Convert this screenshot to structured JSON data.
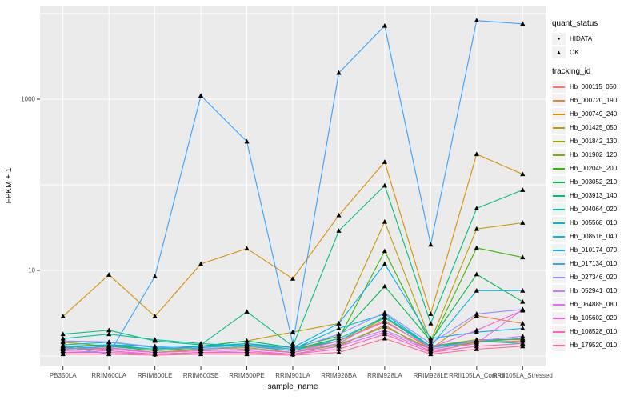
{
  "chart_data": {
    "type": "line",
    "title": "",
    "xlabel": "sample_name",
    "ylabel": "FPKM + 1",
    "y_scale": "log10",
    "ylim": [
      1,
      10000
    ],
    "y_tick_values": [
      10,
      1000
    ],
    "y_tick_labels": [
      "10",
      "1000"
    ],
    "grid": "on",
    "legend_position": "right",
    "categories": [
      "PB350LA",
      "RRIM600LA",
      "RRIM600LE",
      "RRIM600SE",
      "RRIM600PE",
      "RRIM901LA",
      "RRIM928BA",
      "RRIM928LA",
      "RRIM928LE",
      "RRII105LA_Control",
      "RRII105LA_Stressed"
    ],
    "series": [
      {
        "name": "Hb_000115_050",
        "color": "#F8766D",
        "values": [
          1.25,
          1.15,
          1.05,
          1.1,
          1.1,
          1.05,
          1.3,
          2.3,
          1.1,
          1.45,
          1.5
        ],
        "hidata": []
      },
      {
        "name": "Hb_000720_190",
        "color": "#EA8331",
        "values": [
          1.3,
          1.2,
          1.1,
          1.2,
          1.3,
          1.15,
          1.5,
          2.6,
          1.2,
          2.95,
          2.4
        ],
        "hidata": []
      },
      {
        "name": "Hb_000749_240",
        "color": "#D89000",
        "values": [
          2.9,
          8.9,
          2.9,
          11.9,
          18,
          8,
          44,
          185,
          3.1,
          228,
          133
        ],
        "hidata": []
      },
      {
        "name": "Hb_001425_050",
        "color": "#C09B00",
        "values": [
          1.45,
          1.3,
          1.2,
          1.3,
          1.5,
          1.9,
          2.4,
          37,
          1.5,
          30.5,
          36
        ],
        "hidata": []
      },
      {
        "name": "Hb_001842_130",
        "color": "#A3A500",
        "values": [
          1.2,
          1.25,
          1.1,
          1.2,
          1.25,
          1.1,
          1.4,
          2.8,
          1.3,
          1.55,
          1.55
        ],
        "hidata": []
      },
      {
        "name": "Hb_001902_120",
        "color": "#7CAE00",
        "values": [
          1.15,
          1.25,
          1.1,
          1.15,
          1.2,
          1.1,
          1.35,
          2.2,
          1.2,
          1.45,
          1.6
        ],
        "hidata": []
      },
      {
        "name": "Hb_002045_200",
        "color": "#39B600",
        "values": [
          1.2,
          1.3,
          1.15,
          1.25,
          1.4,
          1.2,
          1.6,
          16.8,
          1.4,
          18.3,
          14.2
        ],
        "hidata": []
      },
      {
        "name": "Hb_003052_210",
        "color": "#00BB4E",
        "values": [
          1.3,
          1.35,
          1.2,
          1.3,
          1.5,
          1.25,
          1.7,
          6.5,
          1.5,
          9,
          4.3
        ],
        "hidata": []
      },
      {
        "name": "Hb_003913_140",
        "color": "#00BF7D",
        "values": [
          1.8,
          2.0,
          1.5,
          1.35,
          3.3,
          1.3,
          29,
          98,
          2.4,
          53,
          87
        ],
        "hidata": []
      },
      {
        "name": "Hb_004064_020",
        "color": "#00C1A3",
        "values": [
          1.6,
          1.8,
          1.55,
          1.4,
          1.3,
          1.2,
          1.5,
          2.9,
          1.3,
          1.5,
          1.4
        ],
        "hidata": []
      },
      {
        "name": "Hb_005568_010",
        "color": "#00BFC4",
        "values": [
          1.35,
          1.45,
          1.25,
          1.2,
          1.3,
          1.15,
          1.6,
          2.8,
          1.25,
          1.5,
          1.6
        ],
        "hidata": []
      },
      {
        "name": "Hb_008516_040",
        "color": "#00BAE0",
        "values": [
          1.2,
          1.3,
          1.2,
          1.25,
          1.35,
          1.2,
          2.1,
          3.1,
          1.3,
          5.8,
          5.8
        ],
        "hidata": []
      },
      {
        "name": "Hb_010174_070",
        "color": "#00B0F6",
        "values": [
          1.25,
          1.35,
          1.3,
          1.3,
          1.4,
          1.25,
          2.4,
          11.9,
          1.6,
          1.9,
          2.1
        ],
        "hidata": []
      },
      {
        "name": "Hb_017134_010",
        "color": "#35A2FF",
        "values": [
          1.3,
          1.05,
          8.5,
          1100,
          320,
          1.4,
          2030,
          7200,
          20,
          8300,
          7600
        ],
        "hidata": [
          1
        ]
      },
      {
        "name": "Hb_027346_020",
        "color": "#9590FF",
        "values": [
          1.5,
          1.46,
          1.28,
          1.2,
          1.3,
          1.2,
          1.8,
          3.2,
          1.4,
          3.1,
          3.5
        ],
        "hidata": []
      },
      {
        "name": "Hb_052941_010",
        "color": "#C77CFF",
        "values": [
          1.2,
          1.25,
          1.1,
          1.15,
          1.2,
          1.1,
          1.4,
          2.0,
          1.2,
          1.5,
          1.7
        ],
        "hidata": []
      },
      {
        "name": "Hb_064885_080",
        "color": "#E76BF3",
        "values": [
          1.1,
          1.15,
          1.05,
          1.1,
          1.15,
          1.05,
          1.3,
          1.9,
          1.15,
          1.4,
          3.5
        ],
        "hidata": []
      },
      {
        "name": "Hb_105602_020",
        "color": "#FA62DB",
        "values": [
          1.15,
          1.2,
          1.1,
          1.15,
          1.2,
          1.1,
          1.5,
          2.5,
          1.25,
          2.0,
          3.4
        ],
        "hidata": []
      },
      {
        "name": "Hb_108528_010",
        "color": "#FF62BC",
        "values": [
          1.1,
          1.1,
          1.05,
          1.1,
          1.1,
          1.05,
          1.2,
          1.8,
          1.1,
          1.3,
          1.4
        ],
        "hidata": [
          0
        ]
      },
      {
        "name": "Hb_179520_010",
        "color": "#FF6A98",
        "values": [
          1.05,
          1.05,
          1.02,
          1.05,
          1.05,
          1.02,
          1.1,
          1.6,
          1.05,
          1.2,
          1.3
        ],
        "hidata": [
          2,
          5
        ]
      }
    ]
  },
  "legend": {
    "quant_status": {
      "title": "quant_status",
      "items": [
        {
          "label": "HIDATA",
          "marker": "circle"
        },
        {
          "label": "OK",
          "marker": "triangle"
        }
      ]
    },
    "tracking_id": {
      "title": "tracking_id"
    }
  },
  "style": {
    "panel_bg": "#EBEBEB",
    "grid_color": "#FFFFFF",
    "tick_color": "#333333",
    "axis_text_color": "#4D4D4D",
    "marker_color": "#000000",
    "legend_key_bg": "#F2F2F2"
  }
}
